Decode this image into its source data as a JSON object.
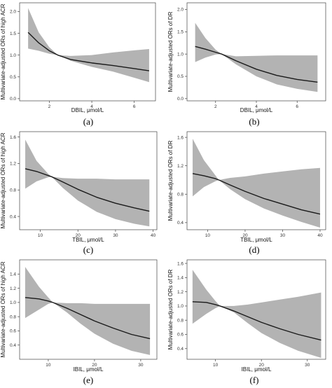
{
  "figure": {
    "panel_labels": [
      "(a)",
      "(b)",
      "(c)",
      "(d)",
      "(e)",
      "(f)"
    ]
  },
  "colors": {
    "band": "#b3b3b3",
    "line": "#1a1a1a",
    "frame": "#444444",
    "background": "#ffffff"
  },
  "chart_data": [
    {
      "type": "line",
      "panel": "(a)",
      "xlabel": "DBIL, μmol/L",
      "ylabel": "Multivariate-adjusted ORs of high ACR",
      "xlim": [
        0.6,
        7.0
      ],
      "ylim": [
        -0.05,
        2.2
      ],
      "xticks": [
        2,
        4,
        6
      ],
      "yticks": [
        0.0,
        0.5,
        1.0,
        1.5,
        2.0
      ],
      "grid": false,
      "series": [
        {
          "x": [
            1.0,
            1.5,
            2.0,
            2.4,
            3.0,
            4.0,
            5.0,
            6.0,
            6.7
          ],
          "y": [
            1.52,
            1.28,
            1.1,
            1.0,
            0.9,
            0.82,
            0.76,
            0.69,
            0.64
          ],
          "ci_lower": [
            1.15,
            1.1,
            1.03,
            1.0,
            0.87,
            0.73,
            0.62,
            0.48,
            0.38
          ],
          "ci_upper": [
            2.08,
            1.52,
            1.18,
            1.0,
            0.98,
            1.0,
            1.06,
            1.11,
            1.14
          ]
        }
      ]
    },
    {
      "type": "line",
      "panel": "(b)",
      "xlabel": "DBIL, μmol/L",
      "ylabel": "Multivariate-adjusted ORs of DR",
      "xlim": [
        0.6,
        7.4
      ],
      "ylim": [
        -0.05,
        2.15
      ],
      "xticks": [
        2,
        4,
        6
      ],
      "yticks": [
        0.0,
        0.5,
        1.0,
        1.5,
        2.0
      ],
      "grid": false,
      "series": [
        {
          "x": [
            1.0,
            1.5,
            2.0,
            2.3,
            3.0,
            4.0,
            5.0,
            6.0,
            7.0
          ],
          "y": [
            1.17,
            1.11,
            1.04,
            1.0,
            0.85,
            0.66,
            0.52,
            0.43,
            0.37
          ],
          "ci_lower": [
            0.82,
            0.92,
            0.99,
            1.0,
            0.77,
            0.5,
            0.32,
            0.22,
            0.15
          ],
          "ci_upper": [
            1.7,
            1.36,
            1.1,
            1.0,
            0.95,
            0.96,
            0.97,
            0.97,
            0.97
          ]
        }
      ]
    },
    {
      "type": "line",
      "panel": "(c)",
      "xlabel": "TBIL, μmol/L",
      "ylabel": "Multivariate-adjusted ORs of high ACR",
      "xlim": [
        4.5,
        41
      ],
      "ylim": [
        0.2,
        1.68
      ],
      "xticks": [
        10,
        20,
        30,
        40
      ],
      "yticks": [
        0.4,
        0.8,
        1.2,
        1.6
      ],
      "grid": false,
      "series": [
        {
          "x": [
            6,
            9,
            12,
            13,
            16,
            20,
            25,
            30,
            35,
            39
          ],
          "y": [
            1.12,
            1.08,
            1.02,
            1.0,
            0.92,
            0.81,
            0.69,
            0.6,
            0.53,
            0.48
          ],
          "ci_lower": [
            0.82,
            0.93,
            0.99,
            1.0,
            0.83,
            0.64,
            0.47,
            0.36,
            0.29,
            0.25
          ],
          "ci_upper": [
            1.56,
            1.24,
            1.05,
            1.0,
            0.98,
            0.97,
            0.97,
            0.96,
            0.96,
            0.96
          ]
        }
      ]
    },
    {
      "type": "line",
      "panel": "(d)",
      "xlabel": "TBIL, μmol/L",
      "ylabel": "Multivariate-adjusted ORs of DR",
      "xlim": [
        4.5,
        41.5
      ],
      "ylim": [
        0.3,
        1.68
      ],
      "xticks": [
        10,
        20,
        30,
        40
      ],
      "yticks": [
        0.4,
        0.8,
        1.2,
        1.6
      ],
      "grid": false,
      "series": [
        {
          "x": [
            6,
            9,
            12,
            13,
            16,
            20,
            25,
            30,
            35,
            40
          ],
          "y": [
            1.09,
            1.06,
            1.02,
            1.0,
            0.93,
            0.84,
            0.74,
            0.66,
            0.58,
            0.52
          ],
          "ci_lower": [
            0.77,
            0.9,
            0.98,
            1.0,
            0.87,
            0.73,
            0.6,
            0.5,
            0.41,
            0.33
          ],
          "ci_upper": [
            1.58,
            1.28,
            1.07,
            1.0,
            1.03,
            1.05,
            1.09,
            1.12,
            1.15,
            1.17
          ]
        }
      ]
    },
    {
      "type": "line",
      "panel": "(e)",
      "xlabel": "IBIL, μmol/L",
      "ylabel": "Multivariate-adjusted ORs of high ACR",
      "xlim": [
        3.8,
        33.5
      ],
      "ylim": [
        0.2,
        1.6
      ],
      "xticks": [
        10,
        20,
        30
      ],
      "yticks": [
        0.4,
        0.6,
        0.8,
        1.0,
        1.2,
        1.4
      ],
      "grid": false,
      "series": [
        {
          "x": [
            5,
            8,
            10,
            11,
            14,
            17,
            20,
            24,
            28,
            32
          ],
          "y": [
            1.07,
            1.05,
            1.02,
            1.0,
            0.92,
            0.83,
            0.74,
            0.64,
            0.55,
            0.49
          ],
          "ci_lower": [
            0.78,
            0.9,
            0.98,
            1.0,
            0.86,
            0.7,
            0.56,
            0.42,
            0.32,
            0.26
          ],
          "ci_upper": [
            1.5,
            1.22,
            1.07,
            1.0,
            0.99,
            0.99,
            0.98,
            0.98,
            0.98,
            0.98
          ]
        }
      ]
    },
    {
      "type": "line",
      "panel": "(f)",
      "xlabel": "IBIL, μmol/L",
      "ylabel": "Multivariate-adjusted ORs of DR",
      "xlim": [
        3.8,
        34
      ],
      "ylim": [
        0.25,
        1.65
      ],
      "xticks": [
        10,
        20,
        30
      ],
      "yticks": [
        0.4,
        0.6,
        0.8,
        1.0,
        1.2,
        1.4,
        1.6
      ],
      "grid": false,
      "series": [
        {
          "x": [
            5,
            8,
            10,
            11,
            14,
            17,
            20,
            24,
            28,
            33
          ],
          "y": [
            1.06,
            1.05,
            1.02,
            1.0,
            0.93,
            0.85,
            0.77,
            0.68,
            0.6,
            0.52
          ],
          "ci_lower": [
            0.75,
            0.89,
            0.97,
            1.0,
            0.91,
            0.76,
            0.62,
            0.48,
            0.37,
            0.27
          ],
          "ci_upper": [
            1.51,
            1.23,
            1.07,
            1.0,
            1.0,
            1.02,
            1.05,
            1.09,
            1.13,
            1.19
          ]
        }
      ]
    }
  ]
}
